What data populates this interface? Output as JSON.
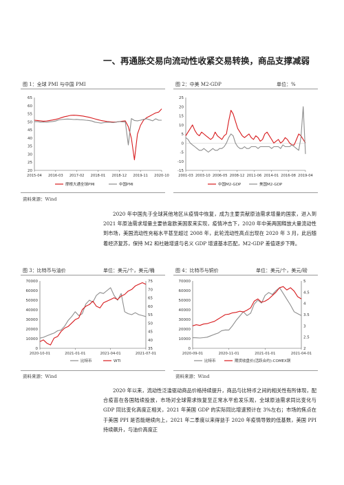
{
  "heading": "一、再通胀交易向流动性收紧交易转换，商品支撑减弱",
  "figures": [
    {
      "title": "图 1：全球 PMI 与中国 PMI",
      "unit": "",
      "source": "资料来源：Wind"
    },
    {
      "title": "图 2：中美 M2-GDP",
      "unit": "单位：%",
      "source": ""
    },
    {
      "title": "图 3：比特币与油价",
      "unit": "单位：美元/个，美元/桶",
      "source": "资料来源：Wind"
    },
    {
      "title": "图 4：比特币与铜价",
      "unit": "单位：美元/个，美元/磅",
      "source": "资料来源：Wind"
    }
  ],
  "paragraphs": [
    "2020 年中国先于全球其他地区从疫情中恢复，成为主要贡献原油需求增量的国家，进入到 2021 年原油需求增量主要依靠欧美国家来实现，疫情冲击下，2020 年中美两国释放大量流动性到市场，美国流动性充裕水平甚至超过 2008 年，此轮流动性高点出现在 2020 年 3 月，此后随着经济复苏，保持 M2 和社融增速与名义 GDP 增速基本匹配，M2-GDP 差值逐步下降。",
    "2020 年以来，流动性泛滥驱动商品价格持续提升，商品与比特币之间的相关性有所体现，配合疫苗在各国陆续投放，市场对全球需求恢复至正常水平愈发乐观，全球原油需求同比变化与 GDP 同比变化高度正相关，2021 年美国 GDP 的实际同比增速预计在 3%左右；市场的焦点在于美国 PPI 是否能继续向上，2021 年二季度以来得益于 2020 年疫情导致的低基数，美国 PPI 持续飙升，与油价高度正"
  ],
  "colors": {
    "red": "#d7191c",
    "gray": "#8c8c8c",
    "axis": "#555555"
  },
  "chart_data": [
    {
      "type": "line",
      "yticks": [
        "65",
        "60",
        "55",
        "50",
        "45",
        "40",
        "35",
        "30",
        "25",
        "20"
      ],
      "ylim": [
        20,
        65
      ],
      "xticks": [
        "2015-04",
        "2016-03",
        "2017-02",
        "2018-01",
        "2018-12",
        "2019-11",
        "2020-10"
      ],
      "series": [
        {
          "name": "摩根大通全球PMI",
          "color": "#d7191c",
          "values": [
            51.0,
            50.8,
            50.6,
            50.4,
            50.5,
            50.8,
            51.1,
            51.5,
            52.0,
            52.6,
            53.2,
            53.6,
            54.0,
            54.1,
            54.0,
            53.8,
            53.6,
            53.2,
            52.8,
            52.3,
            51.8,
            51.3,
            50.8,
            50.5,
            50.2,
            50.0,
            49.8,
            49.9,
            50.1,
            50.4,
            50.6,
            47.0,
            39.8,
            26.5,
            42.4,
            47.8,
            51.0,
            52.5,
            53.5,
            54.5,
            55.5,
            56.0,
            58.0
          ]
        },
        {
          "name": "中国PMI",
          "color": "#8c8c8c",
          "values": [
            50.1,
            50.2,
            49.8,
            49.9,
            49.7,
            50.0,
            50.2,
            50.5,
            51.2,
            51.4,
            51.6,
            51.7,
            51.6,
            51.4,
            51.5,
            51.3,
            51.2,
            51.0,
            50.8,
            50.5,
            49.8,
            49.5,
            49.2,
            49.5,
            49.8,
            49.7,
            49.5,
            49.8,
            50.2,
            50.0,
            50.0,
            35.7,
            52.0,
            50.8,
            50.6,
            51.0,
            51.5,
            51.9,
            51.3,
            50.6,
            51.9,
            51.0,
            51.0
          ]
        }
      ]
    },
    {
      "type": "line",
      "yticks": [
        "25",
        "20",
        "15",
        "10",
        "5",
        "0",
        "-5",
        "-10",
        "-15"
      ],
      "ylim": [
        -15,
        25
      ],
      "xticks": [
        "2001-03",
        "2003-10",
        "2006-05",
        "2008-12",
        "2011-06",
        "2014-01",
        "2016-08",
        "2019-04"
      ],
      "series": [
        {
          "name": "中国M2-GDP",
          "color": "#d7191c",
          "values": [
            4,
            6,
            8,
            10,
            7,
            5,
            4,
            6,
            5,
            4,
            3,
            2,
            3,
            6,
            4,
            3,
            2,
            4,
            5,
            12,
            18,
            16,
            12,
            8,
            6,
            4,
            3,
            4,
            5,
            3,
            2,
            4,
            3,
            1,
            2,
            5,
            6,
            4,
            2,
            0,
            1,
            2,
            0,
            1,
            3,
            2,
            0,
            -1,
            -1,
            2,
            5,
            4,
            2,
            0
          ]
        },
        {
          "name": "美国M2-GDP",
          "color": "#8c8c8c",
          "values": [
            3,
            2,
            0,
            -1,
            -2,
            -3,
            -4,
            -4,
            -3,
            -4,
            -5,
            -4,
            -3,
            -4,
            -4,
            -3,
            -3,
            -2,
            0,
            3,
            5,
            4,
            0,
            -2,
            -3,
            -3,
            -2,
            -3,
            -3,
            -2,
            -2,
            -2,
            -3,
            -2,
            -2,
            -2,
            -2,
            -2,
            -3,
            -2,
            -2,
            -2,
            -3,
            -1,
            -2,
            -2,
            -2,
            -1,
            -2,
            -3,
            -4,
            3,
            20,
            -6
          ]
        }
      ]
    },
    {
      "type": "line",
      "yticks_left": [
        "70000",
        "60000",
        "50000",
        "40000",
        "30000",
        "20000",
        "10000",
        "0"
      ],
      "yticks_right": [
        "75",
        "70",
        "65",
        "60",
        "55",
        "50",
        "45",
        "40",
        "35"
      ],
      "ylim_left": [
        0,
        70000
      ],
      "ylim_right": [
        35,
        75
      ],
      "xticks": [
        "2020-10-01",
        "2021-01-01",
        "2021-04-01",
        "2021-07-01"
      ],
      "series": [
        {
          "name": "比特币",
          "color": "#8c8c8c",
          "axis": "left",
          "values": [
            10600,
            11400,
            13000,
            14500,
            15800,
            18200,
            19000,
            23000,
            29000,
            33000,
            38000,
            34000,
            36000,
            46000,
            50000,
            48000,
            55000,
            58000,
            57000,
            60000,
            63000,
            55000,
            50000,
            57000,
            38000,
            36000,
            35000,
            37000,
            35000,
            34000,
            33000
          ]
        },
        {
          "name": "WTI",
          "color": "#d7191c",
          "axis": "right",
          "values": [
            39,
            40,
            38,
            37,
            41,
            42,
            45,
            47,
            48,
            50,
            52,
            53,
            58,
            60,
            61,
            63,
            60,
            59,
            62,
            63,
            64,
            65,
            64,
            66,
            67,
            69,
            70,
            72,
            73,
            74,
            73
          ]
        }
      ]
    },
    {
      "type": "line",
      "yticks_left": [
        "70000",
        "60000",
        "50000",
        "40000",
        "30000",
        "20000",
        "10000",
        "0"
      ],
      "yticks_right": [
        "5",
        "4.5",
        "4",
        "3.5",
        "3",
        "2.5",
        "2"
      ],
      "ylim_left": [
        0,
        70000
      ],
      "ylim_right": [
        2,
        5
      ],
      "xticks": [
        "2020-09-01",
        "2020-11-01",
        "2021-01-01",
        "2021-04-01"
      ],
      "series": [
        {
          "name": "比特币",
          "color": "#8c8c8c",
          "axis": "left",
          "values": [
            11000,
            10900,
            10700,
            11100,
            11600,
            13000,
            14500,
            15800,
            18300,
            19100,
            19000,
            23500,
            29000,
            33500,
            38000,
            34000,
            36500,
            46000,
            50000,
            47000,
            55000,
            58000,
            56000,
            60000,
            63000,
            57000,
            51000,
            45000,
            38000,
            36000,
            34000
          ]
        },
        {
          "name": "期货收盘价(活跃合约):COMEX铜",
          "color": "#d7191c",
          "axis": "right",
          "values": [
            3.0,
            3.05,
            3.02,
            3.08,
            3.1,
            3.15,
            3.2,
            3.3,
            3.4,
            3.5,
            3.52,
            3.58,
            3.6,
            3.65,
            3.62,
            3.7,
            3.8,
            4.1,
            4.2,
            4.05,
            4.1,
            4.2,
            4.35,
            4.5,
            4.7,
            4.75,
            4.6,
            4.7,
            4.55,
            4.3,
            4.2
          ]
        }
      ]
    }
  ]
}
